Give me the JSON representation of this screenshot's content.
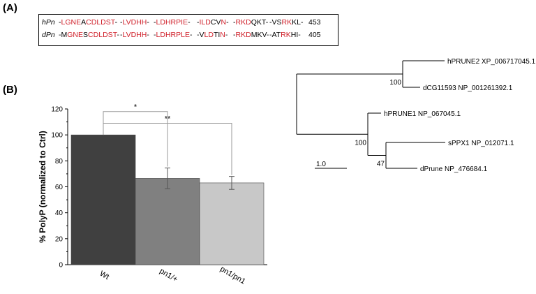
{
  "panel_a": {
    "label": "(A)",
    "rows": [
      {
        "species": "hPn",
        "groups": [
          [
            [
              "-",
              false
            ],
            [
              "L",
              true
            ],
            [
              "G",
              true
            ],
            [
              "N",
              true
            ],
            [
              "E",
              true
            ],
            [
              "A",
              false
            ],
            [
              "C",
              true
            ],
            [
              "D",
              true
            ],
            [
              "L",
              true
            ],
            [
              "D",
              true
            ],
            [
              "S",
              true
            ],
            [
              "T",
              true
            ],
            [
              "-",
              false
            ]
          ],
          [
            [
              "-",
              false
            ],
            [
              "L",
              true
            ],
            [
              "V",
              true
            ],
            [
              "D",
              true
            ],
            [
              "H",
              true
            ],
            [
              "H",
              true
            ],
            [
              "-",
              false
            ]
          ],
          [
            [
              "-",
              false
            ],
            [
              "L",
              true
            ],
            [
              "D",
              true
            ],
            [
              "H",
              true
            ],
            [
              "R",
              true
            ],
            [
              "P",
              true
            ],
            [
              "I",
              true
            ],
            [
              "E",
              true
            ],
            [
              "-",
              false
            ]
          ],
          [
            [
              "-",
              false
            ],
            [
              "I",
              true
            ],
            [
              "L",
              true
            ],
            [
              "D",
              true
            ],
            [
              "C",
              false
            ],
            [
              "V",
              false
            ],
            [
              "N",
              true
            ],
            [
              "-",
              false
            ]
          ],
          [
            [
              "-",
              false
            ],
            [
              "R",
              true
            ],
            [
              "K",
              true
            ],
            [
              "D",
              true
            ],
            [
              "Q",
              false
            ],
            [
              "K",
              false
            ],
            [
              "T",
              false
            ],
            [
              "-",
              false
            ]
          ],
          [
            [
              "-",
              false
            ],
            [
              "V",
              false
            ],
            [
              "S",
              false
            ],
            [
              "R",
              true
            ],
            [
              "K",
              true
            ],
            [
              "K",
              false
            ],
            [
              "L",
              false
            ],
            [
              "-",
              false
            ]
          ]
        ],
        "number": "453"
      },
      {
        "species": "dPn",
        "groups": [
          [
            [
              "-",
              false
            ],
            [
              "M",
              false
            ],
            [
              "G",
              true
            ],
            [
              "N",
              true
            ],
            [
              "E",
              true
            ],
            [
              "S",
              false
            ],
            [
              "C",
              true
            ],
            [
              "D",
              true
            ],
            [
              "L",
              true
            ],
            [
              "D",
              true
            ],
            [
              "S",
              true
            ],
            [
              "T",
              true
            ],
            [
              "-",
              false
            ]
          ],
          [
            [
              "-",
              false
            ],
            [
              "L",
              true
            ],
            [
              "V",
              true
            ],
            [
              "D",
              true
            ],
            [
              "H",
              true
            ],
            [
              "H",
              true
            ],
            [
              "-",
              false
            ]
          ],
          [
            [
              "-",
              false
            ],
            [
              "L",
              true
            ],
            [
              "D",
              true
            ],
            [
              "H",
              true
            ],
            [
              "R",
              true
            ],
            [
              "P",
              true
            ],
            [
              "L",
              true
            ],
            [
              "E",
              true
            ],
            [
              "-",
              false
            ]
          ],
          [
            [
              "-",
              false
            ],
            [
              "V",
              false
            ],
            [
              "L",
              true
            ],
            [
              "D",
              true
            ],
            [
              "T",
              false
            ],
            [
              "I",
              false
            ],
            [
              "N",
              true
            ],
            [
              "-",
              false
            ]
          ],
          [
            [
              "-",
              false
            ],
            [
              "R",
              true
            ],
            [
              "K",
              true
            ],
            [
              "D",
              true
            ],
            [
              "M",
              false
            ],
            [
              "K",
              false
            ],
            [
              "V",
              false
            ],
            [
              "-",
              false
            ]
          ],
          [
            [
              "-",
              false
            ],
            [
              "A",
              false
            ],
            [
              "T",
              false
            ],
            [
              "R",
              true
            ],
            [
              "K",
              true
            ],
            [
              "H",
              false
            ],
            [
              "I",
              false
            ],
            [
              "-",
              false
            ]
          ]
        ],
        "number": "405"
      }
    ]
  },
  "panel_b": {
    "label": "(B)"
  },
  "chart_data": [
    {
      "type": "bar",
      "categories": [
        "Wt",
        "pn1/+",
        "pn1/pn1"
      ],
      "values": [
        100,
        66.5,
        63
      ],
      "errors": [
        0,
        8,
        5
      ],
      "colors": [
        "#404040",
        "#808080",
        "#c8c8c8"
      ],
      "ylabel": "% PolyP (normalized to Ctrl)",
      "xlabel": "",
      "ylim": [
        0,
        120
      ],
      "yticks": [
        "0",
        "20",
        "40",
        "60",
        "80",
        "100",
        "120"
      ],
      "significance": [
        {
          "from": "Wt",
          "to": "pn1/+",
          "label": "*"
        },
        {
          "from": "Wt",
          "to": "pn1/pn1",
          "label": "**"
        }
      ]
    },
    {
      "type": "tree",
      "leaves": [
        {
          "name": "hPRUNE2 XP_006717045.1"
        },
        {
          "name": "dCG11593 NP_001261392.1"
        },
        {
          "name": "hPRUNE1 NP_067045.1"
        },
        {
          "name": "sPPX1 NP_012071.1"
        },
        {
          "name": "dPrune NP_476684.1"
        }
      ],
      "bootstrap": [
        "100",
        "100",
        "47"
      ],
      "scale_label": "1.0"
    }
  ]
}
